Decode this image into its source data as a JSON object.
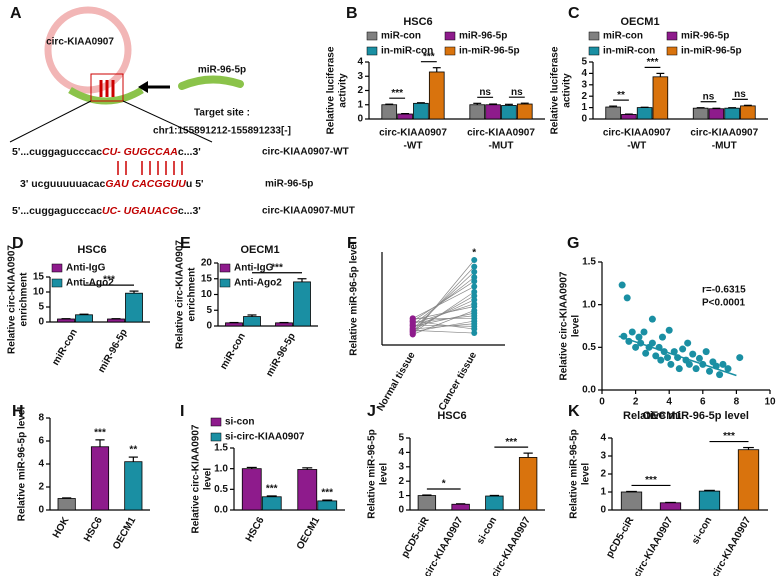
{
  "panel_a": {
    "panel": "A",
    "circle_label": "circ-KIAA0907",
    "mirna_label": "miR-96-5p",
    "target_site": "Target site :",
    "target_coord": "chr1:155891212-155891233[-]",
    "rows": [
      {
        "parts": [
          "5'...cuggagucccac",
          "CU- GUGCCAA",
          "c...3'"
        ],
        "label": "circ-KIAA0907-WT"
      },
      {
        "parts": [
          "3' ucguuuuuacac",
          "GAU CACGGUU",
          "u  5'"
        ],
        "label": "miR-96-5p"
      },
      {
        "parts": [
          "5'...cuggagucccac",
          "UC- UGAUACG",
          "c...3'"
        ],
        "label": "circ-KIAA0907-MUT"
      }
    ]
  },
  "chart_data": [
    {
      "type": "bar",
      "panel": "B",
      "title": "HSC6",
      "ylabel": [
        "Relative luciferase",
        "activity"
      ],
      "categories": [
        [
          "circ-KIAA0907",
          "-WT"
        ],
        [
          "circ-KIAA0907",
          "-MUT"
        ]
      ],
      "series": [
        {
          "name": "miR-con",
          "color": "#808080",
          "values": [
            1.0,
            1.0
          ],
          "errors": [
            0.04,
            0.1
          ]
        },
        {
          "name": "miR-96-5p",
          "color": "#8e1b8c",
          "values": [
            0.35,
            1.0
          ],
          "errors": [
            0.03,
            0.05
          ]
        },
        {
          "name": "in-miR-con",
          "color": "#1a8fa3",
          "values": [
            1.1,
            0.95
          ],
          "errors": [
            0.04,
            0.08
          ]
        },
        {
          "name": "in-miR-96-5p",
          "color": "#d9730d",
          "values": [
            3.3,
            1.05
          ],
          "errors": [
            0.3,
            0.06
          ]
        }
      ],
      "ylim": [
        0,
        4
      ],
      "yticks": [
        0,
        1,
        2,
        3,
        4
      ],
      "annotations": [
        "***",
        "***",
        "ns",
        "ns"
      ]
    },
    {
      "type": "bar",
      "panel": "C",
      "title": "OECM1",
      "ylabel": [
        "Relative luciferase",
        "activity"
      ],
      "categories": [
        [
          "circ-KIAA0907",
          "-WT"
        ],
        [
          "circ-KIAA0907",
          "-MUT"
        ]
      ],
      "series": [
        {
          "name": "miR-con",
          "color": "#808080",
          "values": [
            1.05,
            0.95
          ],
          "errors": [
            0.08,
            0.04
          ]
        },
        {
          "name": "miR-96-5p",
          "color": "#8e1b8c",
          "values": [
            0.4,
            0.9
          ],
          "errors": [
            0.03,
            0.04
          ]
        },
        {
          "name": "in-miR-con",
          "color": "#1a8fa3",
          "values": [
            1.0,
            0.95
          ],
          "errors": [
            0.03,
            0.04
          ]
        },
        {
          "name": "in-miR-96-5p",
          "color": "#d9730d",
          "values": [
            3.7,
            1.15
          ],
          "errors": [
            0.3,
            0.05
          ]
        }
      ],
      "ylim": [
        0,
        5
      ],
      "yticks": [
        0,
        1,
        2,
        3,
        4,
        5
      ],
      "annotations": [
        "**",
        "***",
        "ns",
        "ns"
      ]
    },
    {
      "type": "bar",
      "panel": "D",
      "title": "HSC6",
      "ylabel": [
        "Relative circ-KIAA0907",
        "enrichment"
      ],
      "categories": [
        "miR-con",
        "miR-96-5p"
      ],
      "series": [
        {
          "name": "Anti-IgG",
          "color": "#8e1b8c",
          "values": [
            1.0,
            1.0
          ],
          "errors": [
            0.1,
            0.1
          ]
        },
        {
          "name": "Anti-Ago2",
          "color": "#1a8fa3",
          "values": [
            2.4,
            9.6
          ],
          "errors": [
            0.2,
            0.7
          ]
        }
      ],
      "ylim": [
        0,
        15
      ],
      "yticks": [
        0,
        5,
        10,
        15
      ],
      "annotations": [
        "***"
      ]
    },
    {
      "type": "bar",
      "panel": "E",
      "title": "OECM1",
      "ylabel": [
        "Relative circ-KIAA0907",
        "enrichment"
      ],
      "categories": [
        "miR-con",
        "miR-96-5p"
      ],
      "series": [
        {
          "name": "Anti-IgG",
          "color": "#8e1b8c",
          "values": [
            1.0,
            1.0
          ],
          "errors": [
            0.1,
            0.1
          ]
        },
        {
          "name": "Anti-Ago2",
          "color": "#1a8fa3",
          "values": [
            3.0,
            14.0
          ],
          "errors": [
            0.5,
            1.0
          ]
        }
      ],
      "ylim": [
        0,
        20
      ],
      "yticks": [
        0,
        5,
        10,
        15,
        20
      ],
      "annotations": [
        "***"
      ]
    },
    {
      "type": "paired",
      "panel": "F",
      "ylabel": "Relative miR-96-5p level",
      "categories": [
        "Normal tissue",
        "Cancer tissue"
      ],
      "colors": [
        "#8e1b8c",
        "#1a8fa3"
      ],
      "values": [
        [
          0.8,
          1.0,
          1.2,
          1.5,
          1.8,
          2.0,
          0.9,
          1.1,
          1.3,
          1.6,
          1.9,
          0.8,
          1.4,
          1.7,
          2.0,
          1.0,
          1.2,
          1.5,
          1.8,
          1.1
        ],
        [
          6.4,
          5.9,
          5.5,
          5.1,
          4.8,
          4.4,
          4.0,
          3.7,
          3.4,
          3.1,
          2.9,
          2.6,
          2.4,
          2.2,
          2.0,
          1.8,
          1.6,
          1.4,
          1.2,
          0.9
        ]
      ],
      "ylim": [
        0,
        7
      ],
      "annotations": [
        "*"
      ]
    },
    {
      "type": "scatter",
      "panel": "G",
      "ylabel": [
        "Relative circ-KIAA0907",
        "level"
      ],
      "xlabel": "Relative miR-96-5p level",
      "color": "#1a8fa3",
      "stat_r": "r=-0.6315",
      "stat_p": "P<0.0001",
      "x": [
        1.2,
        1.5,
        1.3,
        1.6,
        1.8,
        2.0,
        2.2,
        2.3,
        2.5,
        2.6,
        2.8,
        3.0,
        3.0,
        3.2,
        3.4,
        3.5,
        3.7,
        3.9,
        4.0,
        4.1,
        4.3,
        4.5,
        4.6,
        4.8,
        5.0,
        5.2,
        5.4,
        5.6,
        5.8,
        6.0,
        6.2,
        6.4,
        6.6,
        6.8,
        7.0,
        7.2,
        7.5,
        8.2,
        5.1,
        3.6
      ],
      "y": [
        1.23,
        1.08,
        0.63,
        0.57,
        0.68,
        0.5,
        0.62,
        0.55,
        0.68,
        0.43,
        0.5,
        0.83,
        0.55,
        0.4,
        0.5,
        0.35,
        0.45,
        0.38,
        0.7,
        0.3,
        0.45,
        0.38,
        0.25,
        0.48,
        0.35,
        0.3,
        0.42,
        0.25,
        0.37,
        0.3,
        0.45,
        0.22,
        0.33,
        0.28,
        0.18,
        0.3,
        0.25,
        0.38,
        0.55,
        0.62
      ],
      "trend": {
        "x": [
          1,
          8
        ],
        "y": [
          0.63,
          0.17
        ]
      },
      "xlim": [
        0,
        10
      ],
      "xticks": [
        0,
        2,
        4,
        6,
        8,
        10
      ],
      "ylim": [
        0,
        1.5
      ],
      "yticks": [
        {
          "value": 0,
          "label": "0.0"
        },
        0.5,
        {
          "value": 1,
          "label": "1.0"
        },
        1.5
      ]
    },
    {
      "type": "bar",
      "panel": "H",
      "ylabel": "Relative miR-96-5p level",
      "categories": [
        "HOK",
        "HSC6",
        "OECM1"
      ],
      "colors": [
        "#808080",
        "#8e1b8c",
        "#1a8fa3"
      ],
      "values": [
        1.0,
        5.5,
        4.2
      ],
      "errors": [
        0.05,
        0.6,
        0.4
      ],
      "ylim": [
        0,
        8
      ],
      "yticks": [
        0,
        2,
        4,
        6,
        8
      ],
      "annotations": [
        "***",
        "**"
      ]
    },
    {
      "type": "bar",
      "panel": "I",
      "ylabel": [
        "Relative circ-KIAA0907",
        "level"
      ],
      "categories": [
        "HSC6",
        "OECM1"
      ],
      "series": [
        {
          "name": "si-con",
          "color": "#8e1b8c",
          "values": [
            1.0,
            0.98
          ],
          "errors": [
            0.03,
            0.04
          ]
        },
        {
          "name": "si-circ-KIAA0907",
          "color": "#1a8fa3",
          "values": [
            0.32,
            0.22
          ],
          "errors": [
            0.02,
            0.02
          ]
        }
      ],
      "ylim": [
        0,
        1.5
      ],
      "yticks": [
        {
          "value": 0,
          "label": "0.0"
        },
        0.5,
        {
          "value": 1,
          "label": "1.0"
        },
        1.5
      ],
      "annotations": [
        "***",
        "***"
      ]
    },
    {
      "type": "bar",
      "panel": "J",
      "title": "HSC6",
      "ylabel": [
        "Relative miR-96-5p",
        "level"
      ],
      "categories": [
        "pCD5-ciR",
        "circ-KIAA0907",
        "si-con",
        "si-circ-KIAA0907"
      ],
      "colors": [
        "#808080",
        "#8e1b8c",
        "#1a8fa3",
        "#d9730d"
      ],
      "values": [
        1.0,
        0.4,
        0.97,
        3.65
      ],
      "errors": [
        0.04,
        0.03,
        0.04,
        0.3
      ],
      "ylim": [
        0,
        5
      ],
      "yticks": [
        0,
        1,
        2,
        3,
        4,
        5
      ],
      "annotations": [
        "*",
        "***"
      ]
    },
    {
      "type": "bar",
      "panel": "K",
      "title": "OECM1",
      "ylabel": [
        "Relative miR-96-5p",
        "level"
      ],
      "categories": [
        "pCD5-ciR",
        "circ-KIAA0907",
        "si-con",
        "si-circ-KIAA0907"
      ],
      "colors": [
        "#808080",
        "#8e1b8c",
        "#1a8fa3",
        "#d9730d"
      ],
      "values": [
        1.0,
        0.4,
        1.05,
        3.35
      ],
      "errors": [
        0.03,
        0.02,
        0.04,
        0.12
      ],
      "ylim": [
        0,
        4
      ],
      "yticks": [
        0,
        1,
        2,
        3,
        4
      ],
      "annotations": [
        "***",
        "***"
      ]
    }
  ]
}
